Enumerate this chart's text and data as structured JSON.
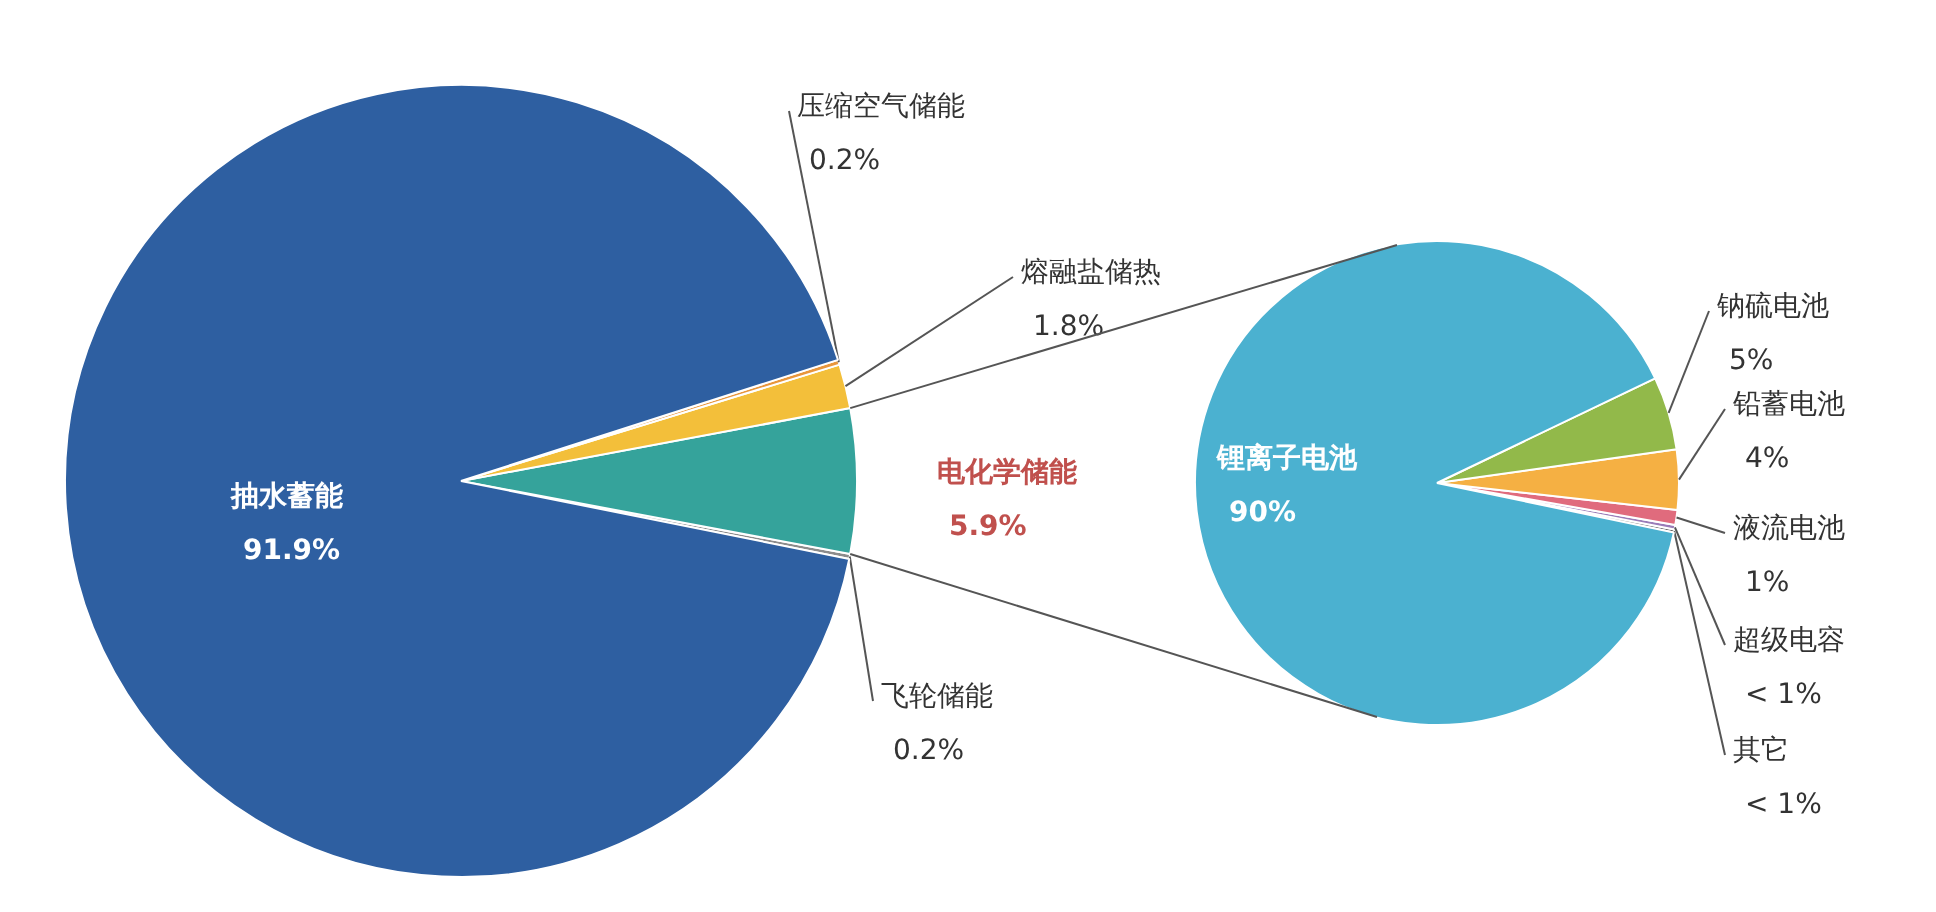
{
  "chart_data": [
    {
      "type": "pie",
      "categories": [
        "飞轮储能",
        "电化学储能",
        "熔融盐储热",
        "压缩空气储能",
        "抽水蓄能"
      ],
      "values": [
        0.2,
        5.9,
        1.8,
        0.2,
        91.9
      ],
      "colors": [
        "#8c8c8c",
        "#35a39b",
        "#f3bf3a",
        "#e8963c",
        "#2e5fa1"
      ],
      "value_labels": [
        "0.2%",
        "5.9%",
        "1.8%",
        "0.2%",
        "91.9%"
      ]
    },
    {
      "type": "pie",
      "categories": [
        "其它",
        "超级电容",
        "液流电池",
        "铅蓄电池",
        "钠硫电池",
        "锂离子电池"
      ],
      "values": [
        0.2,
        0.3,
        1.0,
        4.0,
        4.9,
        89.6
      ],
      "colors": [
        "#5a5a5a",
        "#9a7cb8",
        "#e06b7d",
        "#f5b043",
        "#92b94a",
        "#4bb1d0"
      ],
      "value_labels": [
        "< 1%",
        "< 1%",
        "1%",
        "4%",
        "5%",
        "90%"
      ]
    }
  ]
}
